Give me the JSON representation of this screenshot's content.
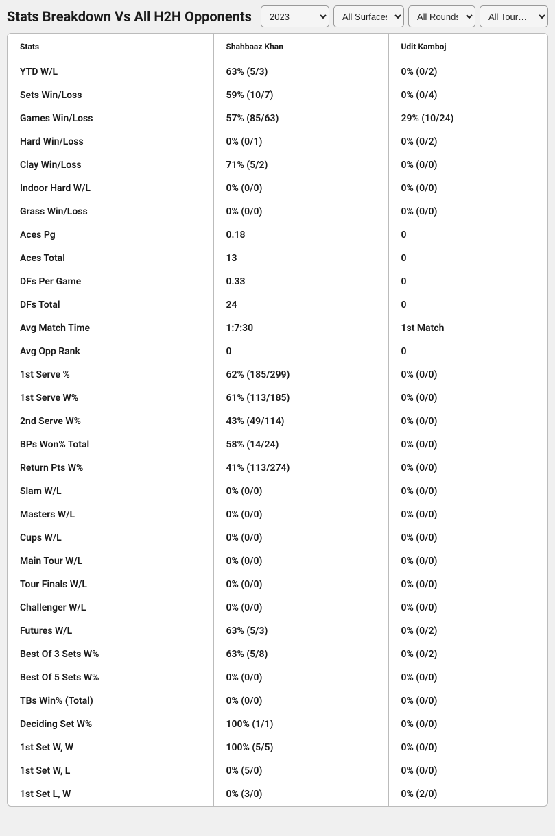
{
  "title": "Stats Breakdown Vs All H2H Opponents",
  "filters": {
    "year": "2023",
    "surface": "All Surfaces",
    "round": "All Rounds",
    "tourn": "All Tourn…"
  },
  "columns": {
    "stat": "Stats",
    "p1": "Shahbaaz Khan",
    "p2": "Udit Kamboj"
  },
  "rows": [
    {
      "stat": "YTD W/L",
      "p1": "63% (5/3)",
      "p2": "0% (0/2)"
    },
    {
      "stat": "Sets Win/Loss",
      "p1": "59% (10/7)",
      "p2": "0% (0/4)"
    },
    {
      "stat": "Games Win/Loss",
      "p1": "57% (85/63)",
      "p2": "29% (10/24)"
    },
    {
      "stat": "Hard Win/Loss",
      "p1": "0% (0/1)",
      "p2": "0% (0/2)"
    },
    {
      "stat": "Clay Win/Loss",
      "p1": "71% (5/2)",
      "p2": "0% (0/0)"
    },
    {
      "stat": "Indoor Hard W/L",
      "p1": "0% (0/0)",
      "p2": "0% (0/0)"
    },
    {
      "stat": "Grass Win/Loss",
      "p1": "0% (0/0)",
      "p2": "0% (0/0)"
    },
    {
      "stat": "Aces Pg",
      "p1": "0.18",
      "p2": "0"
    },
    {
      "stat": "Aces Total",
      "p1": "13",
      "p2": "0"
    },
    {
      "stat": "DFs Per Game",
      "p1": "0.33",
      "p2": "0"
    },
    {
      "stat": "DFs Total",
      "p1": "24",
      "p2": "0"
    },
    {
      "stat": "Avg Match Time",
      "p1": "1:7:30",
      "p2": "1st Match"
    },
    {
      "stat": "Avg Opp Rank",
      "p1": "0",
      "p2": "0"
    },
    {
      "stat": "1st Serve %",
      "p1": "62% (185/299)",
      "p2": "0% (0/0)"
    },
    {
      "stat": "1st Serve W%",
      "p1": "61% (113/185)",
      "p2": "0% (0/0)"
    },
    {
      "stat": "2nd Serve W%",
      "p1": "43% (49/114)",
      "p2": "0% (0/0)"
    },
    {
      "stat": "BPs Won% Total",
      "p1": "58% (14/24)",
      "p2": "0% (0/0)"
    },
    {
      "stat": "Return Pts W%",
      "p1": "41% (113/274)",
      "p2": "0% (0/0)"
    },
    {
      "stat": "Slam W/L",
      "p1": "0% (0/0)",
      "p2": "0% (0/0)"
    },
    {
      "stat": "Masters W/L",
      "p1": "0% (0/0)",
      "p2": "0% (0/0)"
    },
    {
      "stat": "Cups W/L",
      "p1": "0% (0/0)",
      "p2": "0% (0/0)"
    },
    {
      "stat": "Main Tour W/L",
      "p1": "0% (0/0)",
      "p2": "0% (0/0)"
    },
    {
      "stat": "Tour Finals W/L",
      "p1": "0% (0/0)",
      "p2": "0% (0/0)"
    },
    {
      "stat": "Challenger W/L",
      "p1": "0% (0/0)",
      "p2": "0% (0/0)"
    },
    {
      "stat": "Futures W/L",
      "p1": "63% (5/3)",
      "p2": "0% (0/2)"
    },
    {
      "stat": "Best Of 3 Sets W%",
      "p1": "63% (5/8)",
      "p2": "0% (0/2)"
    },
    {
      "stat": "Best Of 5 Sets W%",
      "p1": "0% (0/0)",
      "p2": "0% (0/0)"
    },
    {
      "stat": "TBs Win% (Total)",
      "p1": "0% (0/0)",
      "p2": "0% (0/0)"
    },
    {
      "stat": "Deciding Set W%",
      "p1": "100% (1/1)",
      "p2": "0% (0/0)"
    },
    {
      "stat": "1st Set W, W",
      "p1": "100% (5/5)",
      "p2": "0% (0/0)"
    },
    {
      "stat": "1st Set W, L",
      "p1": "0% (5/0)",
      "p2": "0% (0/0)"
    },
    {
      "stat": "1st Set L, W",
      "p1": "0% (3/0)",
      "p2": "0% (2/0)"
    }
  ]
}
